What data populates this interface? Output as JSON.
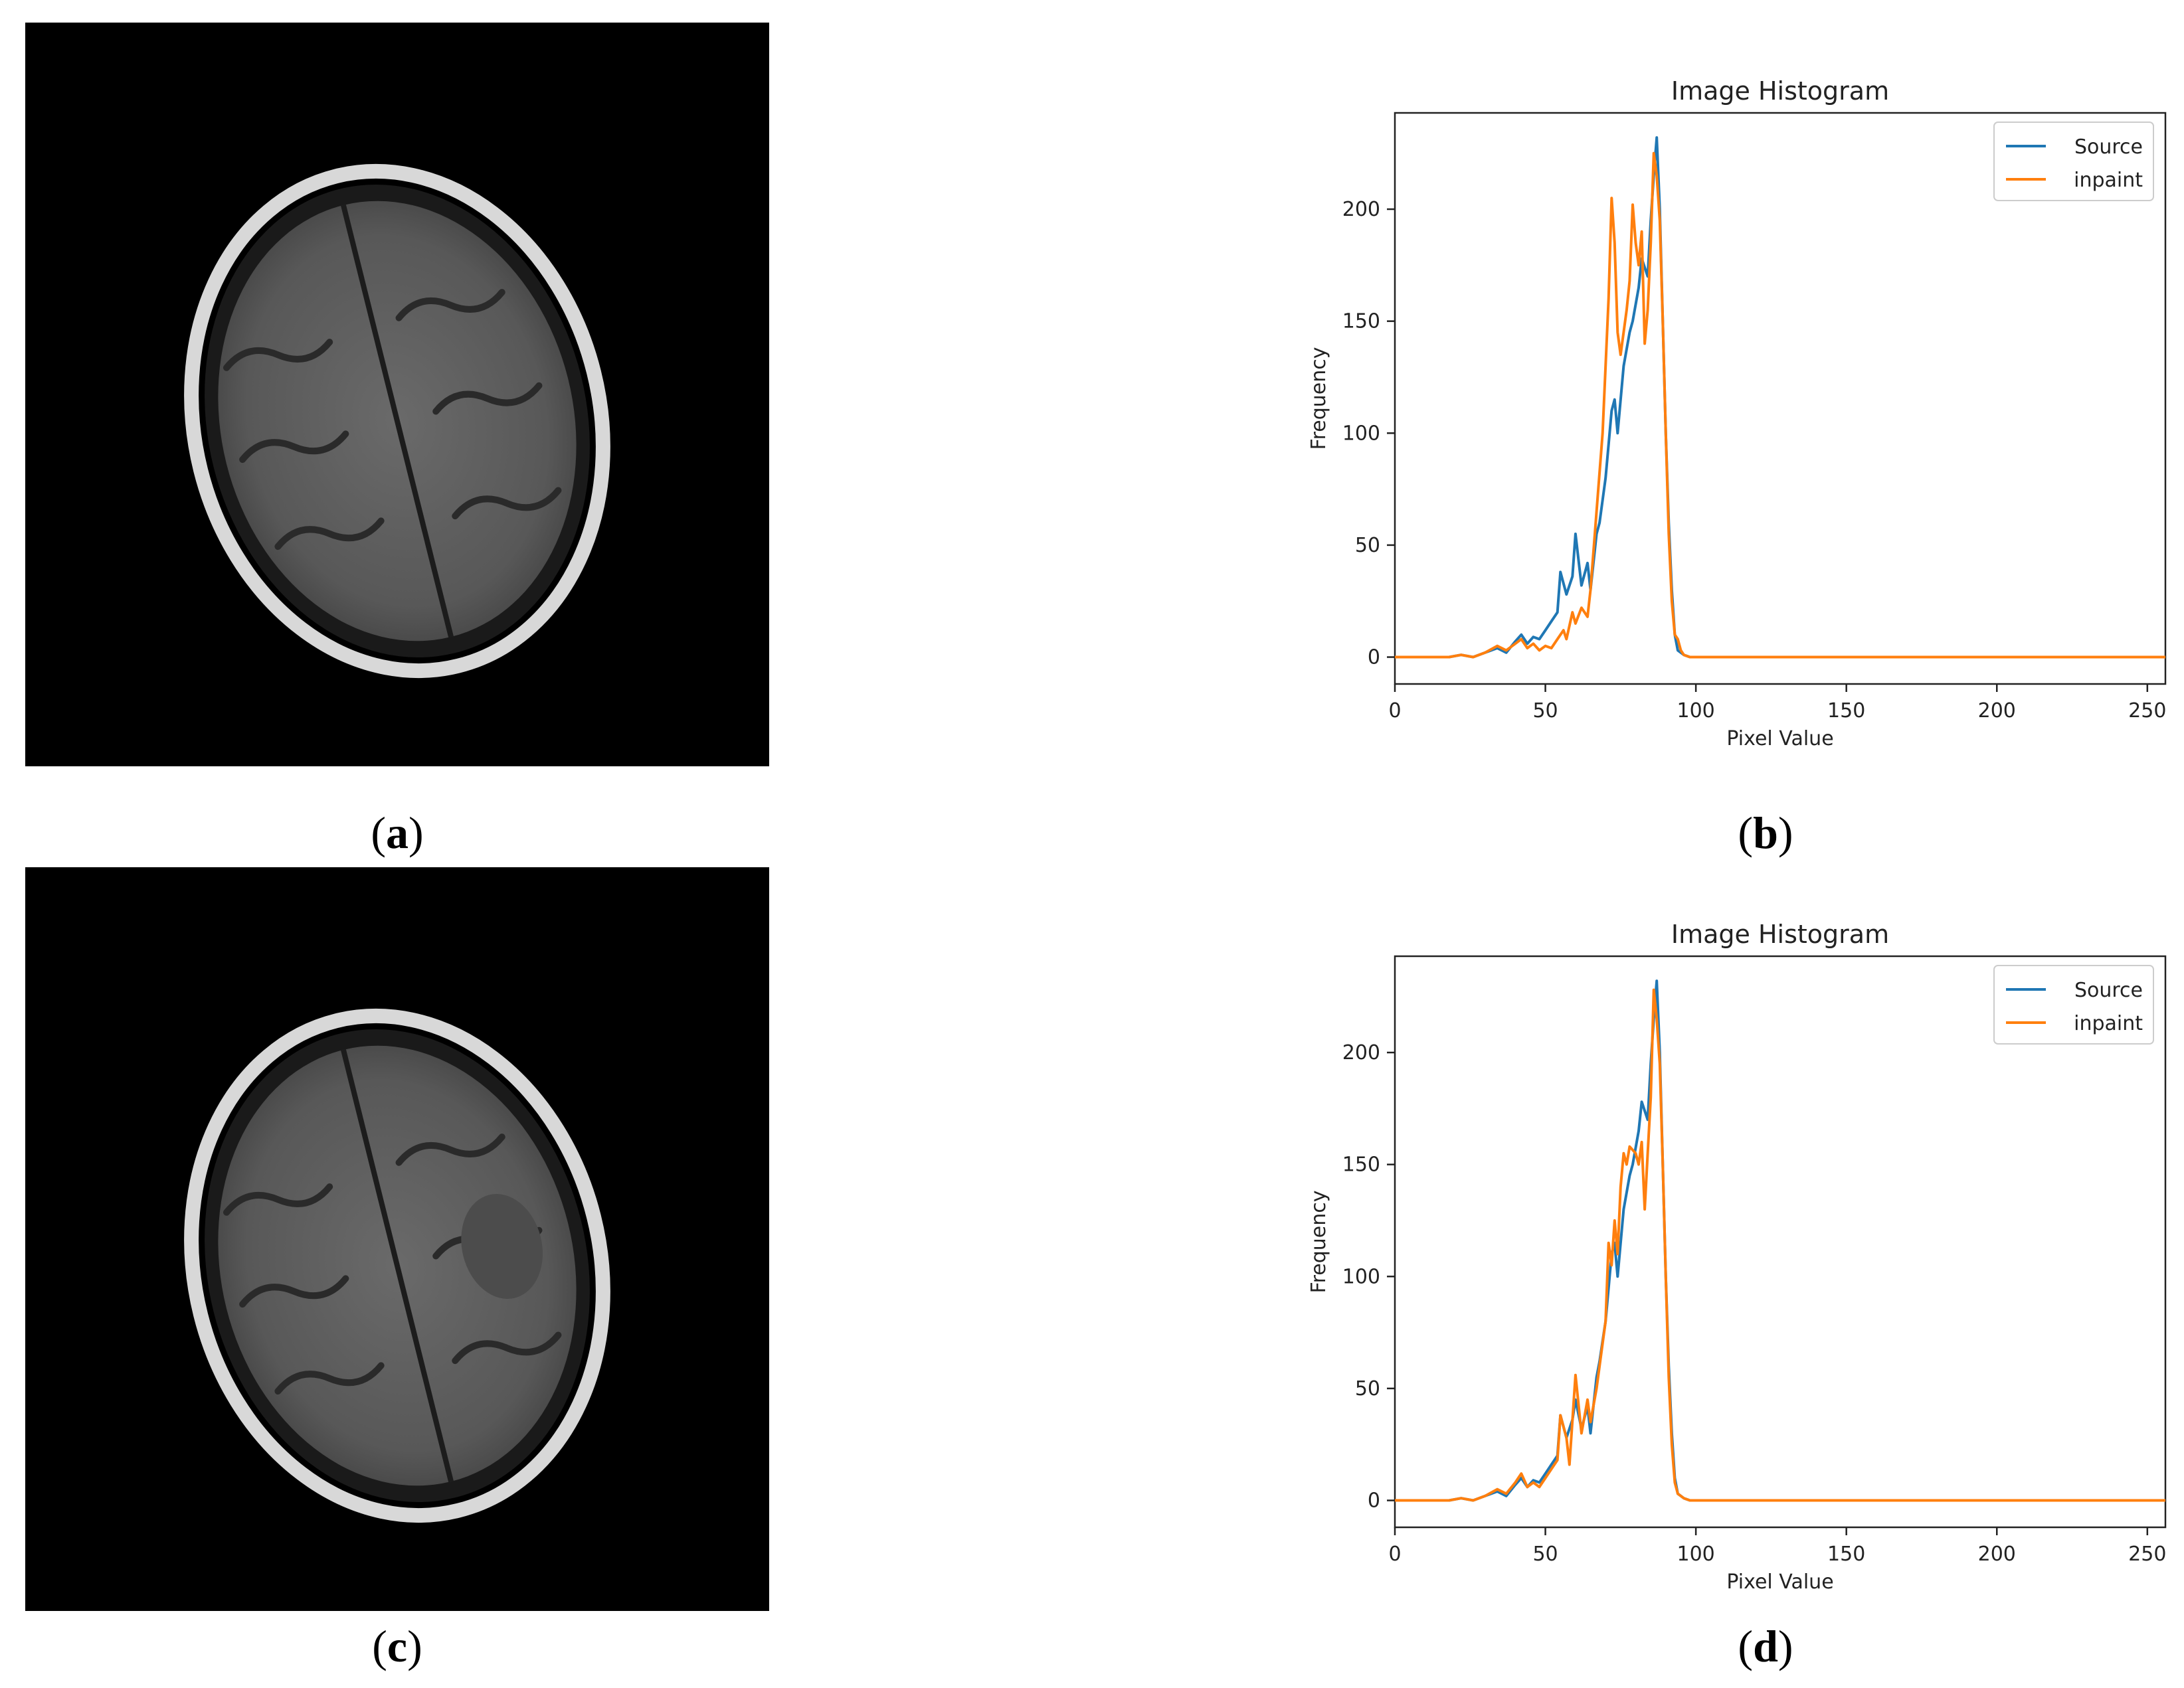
{
  "panels": {
    "a": {
      "caption": "a"
    },
    "b": {
      "caption": "b"
    },
    "c": {
      "caption": "c"
    },
    "d": {
      "caption": "d"
    }
  },
  "colors": {
    "source": "#1f77b4",
    "inpaint": "#ff7f0e"
  },
  "chart_data": [
    {
      "type": "line",
      "panel": "b",
      "title": "Image Histogram",
      "xlabel": "Pixel Value",
      "ylabel": "Frequency",
      "xlim": [
        0,
        256
      ],
      "ylim": [
        -12,
        243
      ],
      "xticks": [
        0,
        50,
        100,
        150,
        200,
        250
      ],
      "yticks": [
        0,
        50,
        100,
        150,
        200
      ],
      "legend": "top-right",
      "grid": false,
      "series": [
        {
          "name": "Source",
          "points": [
            [
              0,
              0
            ],
            [
              18,
              0
            ],
            [
              22,
              1
            ],
            [
              26,
              0
            ],
            [
              30,
              2
            ],
            [
              34,
              4
            ],
            [
              37,
              2
            ],
            [
              40,
              7
            ],
            [
              42,
              10
            ],
            [
              44,
              6
            ],
            [
              46,
              9
            ],
            [
              48,
              8
            ],
            [
              50,
              12
            ],
            [
              52,
              16
            ],
            [
              54,
              20
            ],
            [
              55,
              38
            ],
            [
              57,
              28
            ],
            [
              59,
              36
            ],
            [
              60,
              55
            ],
            [
              62,
              32
            ],
            [
              64,
              42
            ],
            [
              65,
              30
            ],
            [
              67,
              55
            ],
            [
              68,
              60
            ],
            [
              70,
              80
            ],
            [
              72,
              110
            ],
            [
              73,
              115
            ],
            [
              74,
              100
            ],
            [
              76,
              130
            ],
            [
              78,
              145
            ],
            [
              79,
              150
            ],
            [
              81,
              165
            ],
            [
              82,
              178
            ],
            [
              84,
              170
            ],
            [
              85,
              195
            ],
            [
              86,
              215
            ],
            [
              87,
              232
            ],
            [
              88,
              200
            ],
            [
              89,
              150
            ],
            [
              90,
              100
            ],
            [
              91,
              60
            ],
            [
              92,
              30
            ],
            [
              93,
              10
            ],
            [
              94,
              3
            ],
            [
              96,
              1
            ],
            [
              98,
              0
            ],
            [
              256,
              0
            ]
          ]
        },
        {
          "name": "inpaint",
          "points": [
            [
              0,
              0
            ],
            [
              18,
              0
            ],
            [
              22,
              1
            ],
            [
              26,
              0
            ],
            [
              30,
              2
            ],
            [
              34,
              5
            ],
            [
              37,
              3
            ],
            [
              40,
              6
            ],
            [
              42,
              8
            ],
            [
              44,
              4
            ],
            [
              46,
              6
            ],
            [
              48,
              3
            ],
            [
              50,
              5
            ],
            [
              52,
              4
            ],
            [
              54,
              8
            ],
            [
              56,
              12
            ],
            [
              57,
              8
            ],
            [
              59,
              20
            ],
            [
              60,
              15
            ],
            [
              62,
              22
            ],
            [
              64,
              18
            ],
            [
              65,
              30
            ],
            [
              67,
              65
            ],
            [
              69,
              100
            ],
            [
              71,
              160
            ],
            [
              72,
              205
            ],
            [
              73,
              185
            ],
            [
              74,
              145
            ],
            [
              75,
              135
            ],
            [
              77,
              155
            ],
            [
              78,
              168
            ],
            [
              79,
              202
            ],
            [
              80,
              185
            ],
            [
              81,
              175
            ],
            [
              82,
              190
            ],
            [
              83,
              140
            ],
            [
              84,
              155
            ],
            [
              85,
              185
            ],
            [
              86,
              225
            ],
            [
              87,
              215
            ],
            [
              88,
              195
            ],
            [
              89,
              150
            ],
            [
              90,
              100
            ],
            [
              91,
              55
            ],
            [
              92,
              25
            ],
            [
              93,
              10
            ],
            [
              94,
              8
            ],
            [
              95,
              3
            ],
            [
              96,
              1
            ],
            [
              98,
              0
            ],
            [
              256,
              0
            ]
          ]
        }
      ]
    },
    {
      "type": "line",
      "panel": "d",
      "title": "Image Histogram",
      "xlabel": "Pixel Value",
      "ylabel": "Frequency",
      "xlim": [
        0,
        256
      ],
      "ylim": [
        -12,
        243
      ],
      "xticks": [
        0,
        50,
        100,
        150,
        200,
        250
      ],
      "yticks": [
        0,
        50,
        100,
        150,
        200
      ],
      "legend": "top-right",
      "grid": false,
      "series": [
        {
          "name": "Source",
          "points": [
            [
              0,
              0
            ],
            [
              18,
              0
            ],
            [
              22,
              1
            ],
            [
              26,
              0
            ],
            [
              30,
              2
            ],
            [
              34,
              4
            ],
            [
              37,
              2
            ],
            [
              40,
              7
            ],
            [
              42,
              10
            ],
            [
              44,
              6
            ],
            [
              46,
              9
            ],
            [
              48,
              8
            ],
            [
              50,
              12
            ],
            [
              52,
              16
            ],
            [
              54,
              20
            ],
            [
              55,
              38
            ],
            [
              57,
              28
            ],
            [
              59,
              36
            ],
            [
              60,
              45
            ],
            [
              62,
              32
            ],
            [
              64,
              42
            ],
            [
              65,
              30
            ],
            [
              67,
              55
            ],
            [
              68,
              62
            ],
            [
              70,
              80
            ],
            [
              72,
              110
            ],
            [
              73,
              115
            ],
            [
              74,
              100
            ],
            [
              76,
              130
            ],
            [
              78,
              145
            ],
            [
              79,
              150
            ],
            [
              81,
              165
            ],
            [
              82,
              178
            ],
            [
              84,
              170
            ],
            [
              85,
              195
            ],
            [
              86,
              215
            ],
            [
              87,
              232
            ],
            [
              88,
              200
            ],
            [
              89,
              150
            ],
            [
              90,
              100
            ],
            [
              91,
              60
            ],
            [
              92,
              30
            ],
            [
              93,
              10
            ],
            [
              94,
              3
            ],
            [
              96,
              1
            ],
            [
              98,
              0
            ],
            [
              256,
              0
            ]
          ]
        },
        {
          "name": "inpaint",
          "points": [
            [
              0,
              0
            ],
            [
              18,
              0
            ],
            [
              22,
              1
            ],
            [
              26,
              0
            ],
            [
              30,
              2
            ],
            [
              34,
              5
            ],
            [
              37,
              3
            ],
            [
              40,
              8
            ],
            [
              42,
              12
            ],
            [
              44,
              6
            ],
            [
              46,
              8
            ],
            [
              48,
              6
            ],
            [
              50,
              10
            ],
            [
              52,
              14
            ],
            [
              54,
              18
            ],
            [
              55,
              38
            ],
            [
              57,
              28
            ],
            [
              58,
              16
            ],
            [
              60,
              56
            ],
            [
              62,
              30
            ],
            [
              64,
              45
            ],
            [
              65,
              35
            ],
            [
              67,
              50
            ],
            [
              68,
              60
            ],
            [
              70,
              80
            ],
            [
              71,
              115
            ],
            [
              72,
              105
            ],
            [
              73,
              125
            ],
            [
              74,
              110
            ],
            [
              75,
              140
            ],
            [
              76,
              155
            ],
            [
              77,
              150
            ],
            [
              78,
              158
            ],
            [
              80,
              155
            ],
            [
              81,
              150
            ],
            [
              82,
              160
            ],
            [
              83,
              130
            ],
            [
              84,
              155
            ],
            [
              85,
              180
            ],
            [
              86,
              228
            ],
            [
              87,
              215
            ],
            [
              88,
              195
            ],
            [
              89,
              150
            ],
            [
              90,
              100
            ],
            [
              91,
              55
            ],
            [
              92,
              25
            ],
            [
              93,
              8
            ],
            [
              94,
              3
            ],
            [
              95,
              2
            ],
            [
              96,
              1
            ],
            [
              98,
              0
            ],
            [
              256,
              0
            ]
          ]
        }
      ]
    }
  ]
}
